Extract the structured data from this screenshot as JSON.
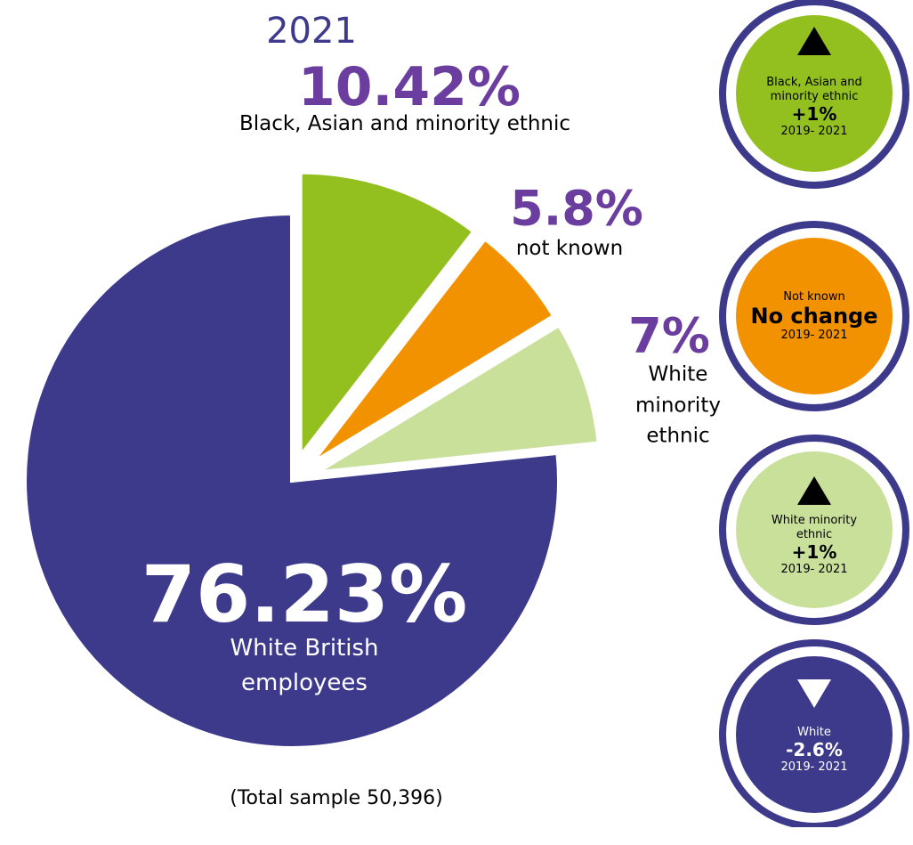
{
  "chart_data": {
    "type": "pie",
    "title": "2021",
    "categories": [
      "White British employees",
      "Black, Asian and minority ethnic",
      "not known",
      "White minority ethnic"
    ],
    "values": [
      76.23,
      10.42,
      5.8,
      7
    ],
    "value_labels": [
      "76.23%",
      "10.42%",
      "5.8%",
      "7%"
    ],
    "colors": [
      "#3d3a8c",
      "#93c01f",
      "#f39200",
      "#c9e09a"
    ],
    "note": "(Total sample 50,396)"
  },
  "badges": [
    {
      "label": "Black, Asian and minority ethnic",
      "change": "+1%",
      "period": "2019- 2021",
      "color": "#93c01f"
    },
    {
      "label": "Not known",
      "change": "No change",
      "period": "2019- 2021",
      "color": "#f39200"
    },
    {
      "label": "White minority ethnic",
      "change": "+1%",
      "period": "2019- 2021",
      "color": "#c9e09a"
    },
    {
      "label": "White",
      "change": "-2.6%",
      "period": "2019- 2021",
      "color": "#3d3a8c"
    }
  ]
}
